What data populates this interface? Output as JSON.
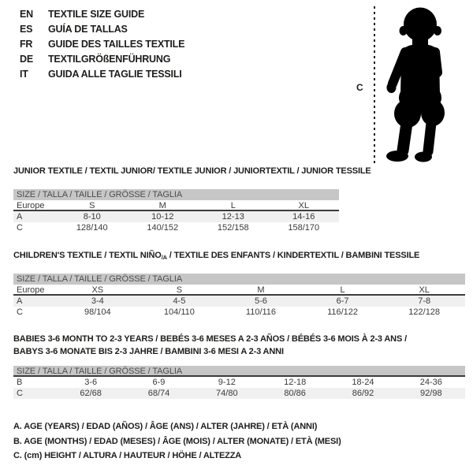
{
  "language_guide": {
    "items": [
      {
        "code": "EN",
        "label": "TEXTILE SIZE GUIDE"
      },
      {
        "code": "ES",
        "label": "GUÍA DE TALLAS"
      },
      {
        "code": "FR",
        "label": "GUIDE DES TAILLES TEXTILE"
      },
      {
        "code": "DE",
        "label": "TEXTILGRÖßENFÜHRUNG"
      },
      {
        "code": "IT",
        "label": "GUIDA ALLE TAGLIE TESSILI"
      }
    ]
  },
  "height_figure": {
    "label": "C"
  },
  "tables": {
    "junior": {
      "title": "JUNIOR TEXTILE / TEXTIL JUNIOR/ TEXTILE JUNIOR / JUNIORTEXTIL / JUNIOR TESSILE",
      "header": "SIZE / TALLA / TAILLE / GRÖSSE / TAGLIA",
      "rows": [
        [
          "Europe",
          "S",
          "M",
          "L",
          "XL"
        ],
        [
          "A",
          "8-10",
          "10-12",
          "12-13",
          "14-16"
        ],
        [
          "C",
          "128/140",
          "140/152",
          "152/158",
          "158/170"
        ]
      ]
    },
    "children": {
      "title_pre": "CHILDREN'S TEXTILE / TEXTIL NIÑO",
      "title_sub": "/A",
      "title_post": " / TEXTILE DES ENFANTS / KINDERTEXTIL / BAMBINI TESSILE",
      "header": "SIZE / TALLA / TAILLE / GRÖSSE / TAGLIA",
      "rows": [
        [
          "Europe",
          "XS",
          "S",
          "M",
          "L",
          "XL"
        ],
        [
          "A",
          "3-4",
          "4-5",
          "5-6",
          "6-7",
          "7-8"
        ],
        [
          "C",
          "98/104",
          "104/110",
          "110/116",
          "116/122",
          "122/128"
        ]
      ]
    },
    "babies": {
      "title_line1": "BABIES 3-6 MONTH TO 2-3 YEARS / BEBÉS 3-6 MESES A 2-3 AÑOS / BÉBÉS 3-6 MOIS À 2-3 ANS /",
      "title_line2": "BABYS 3-6 MONATE BIS 2-3 JAHRE / BAMBINI 3-6 MESI A 2-3 ANNI",
      "header": "SIZE / TALLA / TAILLE / GRÖSSE / TAGLIA",
      "rows": [
        [
          "B",
          "3-6",
          "6-9",
          "9-12",
          "12-18",
          "18-24",
          "24-36"
        ],
        [
          "C",
          "62/68",
          "68/74",
          "74/80",
          "80/86",
          "86/92",
          "92/98"
        ]
      ]
    }
  },
  "footnotes": [
    "A. AGE (YEARS) / EDAD (AÑOS) / ÂGE (ANS) / ALTER (JAHRE) / ETÀ (ANNI)",
    "B. AGE (MONTHS) / EDAD (MESES) / ÂGE (MOIS) / ALTER (MONATE) / ETÀ (MESI)",
    "C. (cm) HEIGHT / ALTURA / HAUTEUR / HÖHE / ALTEZZA"
  ],
  "colors": {
    "text": "#1d1d1b",
    "header_bar": "#c6c6c6",
    "row_shade": "#f0f0f0",
    "rule": "#3c3c3c",
    "silhouette": "#000000"
  }
}
